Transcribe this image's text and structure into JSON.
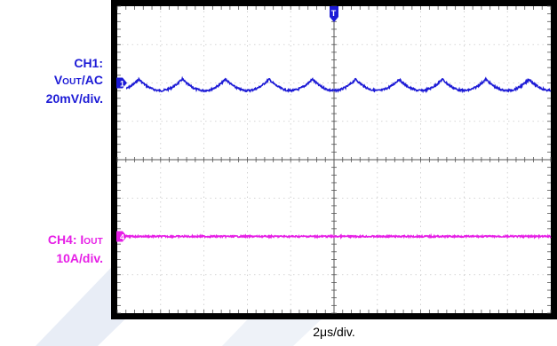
{
  "ch1": {
    "line1": "CH1:",
    "line2_main": "V",
    "line2_sub": "OUT",
    "line2_rest": "/AC",
    "line3": "20mV/div.",
    "color": "#1c1ad6",
    "marker": "1"
  },
  "ch4": {
    "line1_main": "CH4: I",
    "line1_sub": "OUT",
    "line2": "10A/div.",
    "color": "#e61ee6",
    "marker": "4"
  },
  "trigger_marker": "T",
  "timebase": "2μs/div.",
  "chart_data": {
    "type": "line",
    "grid": true,
    "x_divisions": 10,
    "y_divisions": 8,
    "series": [
      {
        "name": "CH1: VOUT/AC",
        "color": "#1c1ad6",
        "waveform": "ripple",
        "cycles": 10,
        "offset_div": 2.0,
        "amplitude_div": 0.33
      },
      {
        "name": "CH4: IOUT",
        "color": "#e61ee6",
        "waveform": "dc",
        "offset_div": -2.0
      }
    ]
  }
}
